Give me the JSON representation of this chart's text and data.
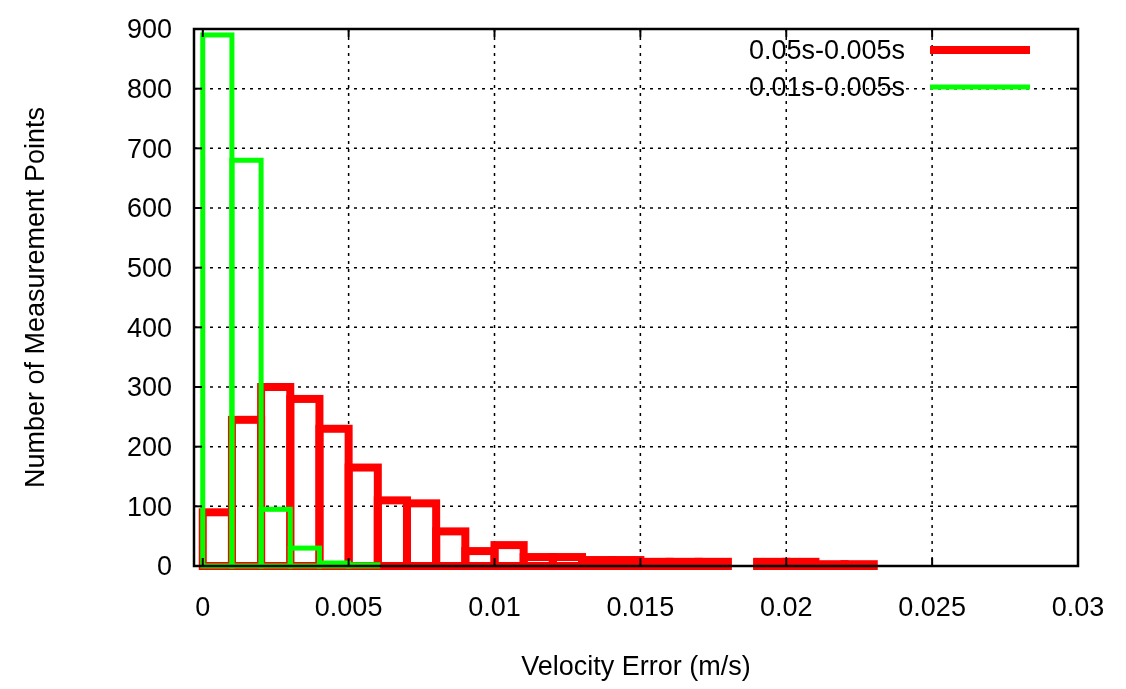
{
  "chart_data": {
    "type": "histogram",
    "xlabel": "Velocity Error (m/s)",
    "ylabel": "Number of Measurement Points",
    "xlim": [
      -0.0003,
      0.03
    ],
    "ylim": [
      0,
      900
    ],
    "xticks": [
      0,
      0.005,
      0.01,
      0.015,
      0.02,
      0.025,
      0.03
    ],
    "yticks": [
      0,
      100,
      200,
      300,
      400,
      500,
      600,
      700,
      800,
      900
    ],
    "grid": true,
    "legend": "top right",
    "bins": [
      0,
      0.001,
      0.002,
      0.003,
      0.004,
      0.005,
      0.006,
      0.007,
      0.008,
      0.009,
      0.01,
      0.011,
      0.012,
      0.013,
      0.014,
      0.015,
      0.016,
      0.017,
      0.018,
      0.019,
      0.02,
      0.021,
      0.022,
      0.023,
      0.024,
      0.025,
      0.026,
      0.027,
      0.028,
      0.029,
      0.03
    ],
    "series": [
      {
        "name": "0.05s-0.005s",
        "color": "#ff0000",
        "values": [
          90,
          245,
          300,
          280,
          230,
          165,
          110,
          105,
          58,
          25,
          35,
          15,
          15,
          10,
          10,
          7,
          7,
          7,
          0,
          7,
          7,
          3,
          3,
          0,
          0,
          0,
          0,
          0,
          0,
          0
        ]
      },
      {
        "name": "0.01s-0.005s",
        "color": "#00ff00",
        "values": [
          890,
          680,
          95,
          30,
          5,
          2,
          0,
          0,
          0,
          0,
          0,
          0,
          0,
          0,
          0,
          0,
          0,
          0,
          0,
          0,
          0,
          0,
          0,
          0,
          0,
          0,
          0,
          0,
          0,
          0
        ]
      }
    ]
  }
}
